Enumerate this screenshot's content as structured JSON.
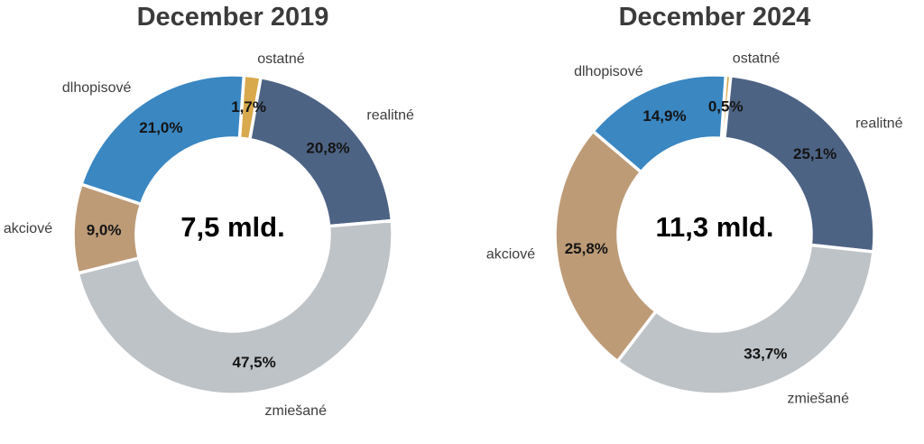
{
  "chart_data": [
    {
      "type": "pie",
      "subtype": "donut",
      "title": "December 2019",
      "center_label": "7,5 mld.",
      "unit": "%",
      "start_angle_deg": 4,
      "clockwise": true,
      "legend_position": "outside-labels",
      "slices": [
        {
          "label": "ostatné",
          "value": 1.7,
          "pct_label": "1,7%",
          "color": "#d9a94e"
        },
        {
          "label": "realitné",
          "value": 20.8,
          "pct_label": "20,8%",
          "color": "#4d6384"
        },
        {
          "label": "zmiešané",
          "value": 47.5,
          "pct_label": "47,5%",
          "color": "#bec3c7"
        },
        {
          "label": "akciové",
          "value": 9.0,
          "pct_label": "9,0%",
          "color": "#bd9b77"
        },
        {
          "label": "dlhopisové",
          "value": 21.0,
          "pct_label": "21,0%",
          "color": "#3a87c2"
        }
      ]
    },
    {
      "type": "pie",
      "subtype": "donut",
      "title": "December 2024",
      "center_label": "11,3 mld.",
      "unit": "%",
      "start_angle_deg": 4,
      "clockwise": true,
      "legend_position": "outside-labels",
      "slices": [
        {
          "label": "ostatné",
          "value": 0.5,
          "pct_label": "0,5%",
          "color": "#d9a94e"
        },
        {
          "label": "realitné",
          "value": 25.1,
          "pct_label": "25,1%",
          "color": "#4d6384"
        },
        {
          "label": "zmiešané",
          "value": 33.7,
          "pct_label": "33,7%",
          "color": "#bec3c7"
        },
        {
          "label": "akciové",
          "value": 25.8,
          "pct_label": "25,8%",
          "color": "#bd9b77"
        },
        {
          "label": "dlhopisové",
          "value": 14.9,
          "pct_label": "14,9%",
          "color": "#3a87c2"
        }
      ]
    }
  ],
  "styles": {
    "title_color": "#3b3b3b",
    "category_label_color": "#3d3d3d",
    "pct_label_color": "#141414",
    "center_label_color": "#000000",
    "slice_separator_color": "#ffffff"
  }
}
